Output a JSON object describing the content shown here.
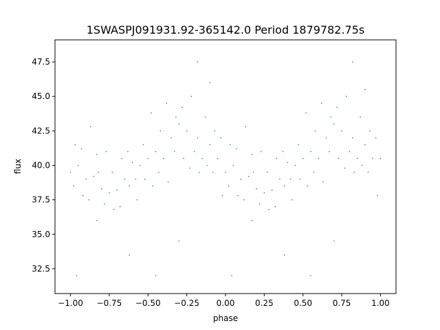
{
  "chart_data": {
    "type": "scatter",
    "title": "1SWASPJ091931.92-365142.0 Period 1879782.75s",
    "xlabel": "phase",
    "ylabel": "flux",
    "xlim": [
      -1.1,
      1.1
    ],
    "ylim": [
      30.7,
      49.1
    ],
    "xticks": [
      -1.0,
      -0.75,
      -0.5,
      -0.25,
      0.0,
      0.25,
      0.5,
      0.75,
      1.0
    ],
    "xtick_labels": [
      "−1.00",
      "−0.75",
      "−0.50",
      "−0.25",
      "0.00",
      "0.25",
      "0.50",
      "0.75",
      "1.00"
    ],
    "yticks": [
      32.5,
      35.0,
      37.5,
      40.0,
      42.5,
      45.0,
      47.5
    ],
    "ytick_labels": [
      "32.5",
      "35.0",
      "37.5",
      "40.0",
      "42.5",
      "45.0",
      "47.5"
    ],
    "grid": false,
    "marker_color": "#1f77b4",
    "series": [
      {
        "x": [
          -1.0,
          -0.95,
          -0.9,
          -0.85,
          -0.8,
          -0.75,
          -0.7,
          -0.65,
          -0.6,
          -0.55,
          -0.5,
          -0.45,
          -0.4,
          -0.35,
          -0.3,
          -0.25,
          -0.2,
          -0.15,
          -0.1,
          -0.05,
          0.0,
          0.05,
          0.1,
          0.15,
          0.2,
          0.25,
          0.3,
          0.35,
          0.4,
          0.45,
          0.5,
          0.55,
          0.6,
          0.65,
          0.7,
          0.75,
          0.8,
          0.85,
          0.9,
          0.95,
          1.0,
          -0.98,
          -0.93,
          -0.88,
          -0.83,
          -0.78,
          -0.73,
          -0.68,
          -0.63,
          -0.58,
          -0.53,
          -0.48,
          -0.43,
          -0.38,
          -0.33,
          -0.28,
          -0.23,
          -0.18,
          -0.13,
          -0.08,
          -0.03,
          0.02,
          0.07,
          0.12,
          0.17,
          0.22,
          0.27,
          0.32,
          0.37,
          0.42,
          0.47,
          0.52,
          0.57,
          0.62,
          0.67,
          0.72,
          0.77,
          0.82,
          0.87,
          0.92,
          0.97,
          -0.97,
          -0.92,
          -0.87,
          -0.82,
          -0.77,
          -0.72,
          -0.67,
          -0.62,
          -0.57,
          -0.52,
          -0.47,
          -0.42,
          -0.37,
          -0.32,
          -0.27,
          -0.22,
          -0.17,
          -0.12,
          -0.07,
          -0.02,
          0.03,
          0.08,
          0.13,
          0.18,
          0.23,
          0.28,
          0.33,
          0.38,
          0.43,
          0.48,
          0.53,
          0.58,
          0.63,
          0.68,
          0.73,
          0.78,
          0.83,
          0.88,
          0.93,
          0.98,
          -0.18,
          0.82,
          -0.1,
          0.9,
          -0.83,
          0.17,
          -0.3,
          0.7,
          -0.96,
          0.04,
          -0.62,
          0.38,
          -0.45,
          0.55
        ],
        "y": [
          39.5,
          40.0,
          39.0,
          39.2,
          38.3,
          38.0,
          38.2,
          39.0,
          40.2,
          40.0,
          40.5,
          41.0,
          40.5,
          42.0,
          43.0,
          42.5,
          41.0,
          40.5,
          41.5,
          40.5,
          39.5,
          40.0,
          39.0,
          39.2,
          38.3,
          38.0,
          38.2,
          39.0,
          40.2,
          40.0,
          40.5,
          41.0,
          40.5,
          42.0,
          43.0,
          42.5,
          41.0,
          40.5,
          41.5,
          40.5,
          40.5,
          38.5,
          41.2,
          37.5,
          40.8,
          37.2,
          39.5,
          37.0,
          41.0,
          39.0,
          41.5,
          43.8,
          39.5,
          44.5,
          41.0,
          44.2,
          39.8,
          42.0,
          43.5,
          39.5,
          42.0,
          38.5,
          41.2,
          37.5,
          40.8,
          37.2,
          39.5,
          37.0,
          41.0,
          39.0,
          41.5,
          43.8,
          39.5,
          44.5,
          41.0,
          44.2,
          39.8,
          42.0,
          43.5,
          39.5,
          42.0,
          41.5,
          37.8,
          42.8,
          39.5,
          41.0,
          36.8,
          40.5,
          38.5,
          37.5,
          39.0,
          38.5,
          42.5,
          38.8,
          43.5,
          40.5,
          45.0,
          39.5,
          40.0,
          42.5,
          37.8,
          41.5,
          37.8,
          42.8,
          39.5,
          41.0,
          36.8,
          40.5,
          38.5,
          37.5,
          39.0,
          38.5,
          42.5,
          38.8,
          43.5,
          40.5,
          45.0,
          39.5,
          40.0,
          42.5,
          37.8,
          47.5,
          47.5,
          46.0,
          45.5,
          36.0,
          36.0,
          34.5,
          34.5,
          32.0,
          32.0,
          33.5,
          33.5,
          32.0,
          32.0
        ]
      }
    ]
  }
}
